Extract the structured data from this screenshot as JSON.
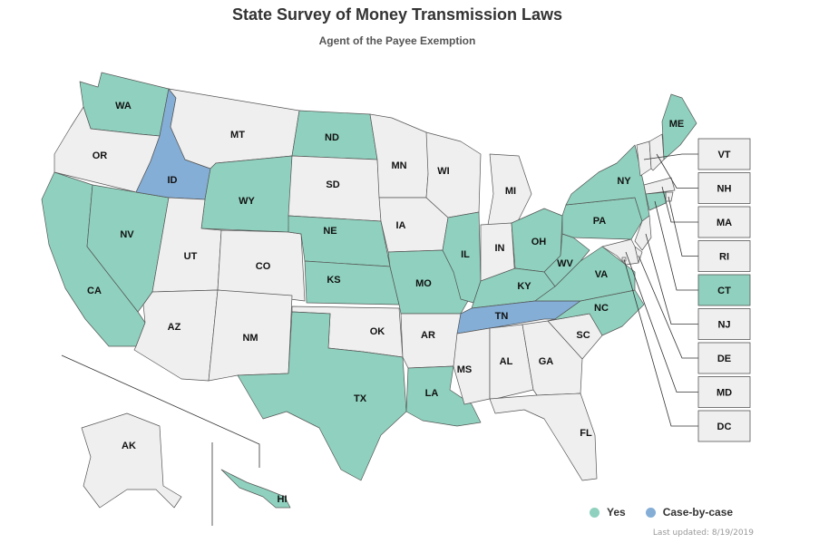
{
  "title": "State Survey of Money Transmission Laws",
  "subtitle": "Agent of the Payee Exemption",
  "colors": {
    "yes": "#8fd1be",
    "case_by_case": "#84aed6",
    "none": "#efefef",
    "border": "#555555"
  },
  "legend": [
    {
      "label": "Yes",
      "color": "#8fd1be"
    },
    {
      "label": "Case-by-case",
      "color": "#84aed6"
    }
  ],
  "updated": "Last updated: 8/19/2019",
  "states": {
    "WA": "yes",
    "OR": "none",
    "CA": "yes",
    "NV": "yes",
    "ID": "case",
    "MT": "none",
    "WY": "yes",
    "UT": "none",
    "CO": "none",
    "AZ": "none",
    "NM": "none",
    "ND": "yes",
    "SD": "none",
    "NE": "yes",
    "KS": "yes",
    "OK": "none",
    "TX": "yes",
    "MN": "none",
    "IA": "none",
    "MO": "yes",
    "AR": "none",
    "LA": "yes",
    "WI": "none",
    "IL": "yes",
    "MI": "none",
    "IN": "none",
    "OH": "yes",
    "KY": "yes",
    "TN": "case",
    "MS": "none",
    "AL": "none",
    "GA": "none",
    "FL": "none",
    "SC": "none",
    "NC": "yes",
    "VA": "yes",
    "WV": "yes",
    "PA": "yes",
    "NY": "yes",
    "ME": "yes",
    "AK": "none",
    "HI": "yes",
    "VT": "none",
    "NH": "none",
    "MA": "none",
    "RI": "none",
    "CT": "yes",
    "NJ": "none",
    "DE": "none",
    "MD": "none",
    "DC": "none"
  },
  "callouts": [
    "VT",
    "NH",
    "MA",
    "RI",
    "CT",
    "NJ",
    "DE",
    "MD",
    "DC"
  ]
}
